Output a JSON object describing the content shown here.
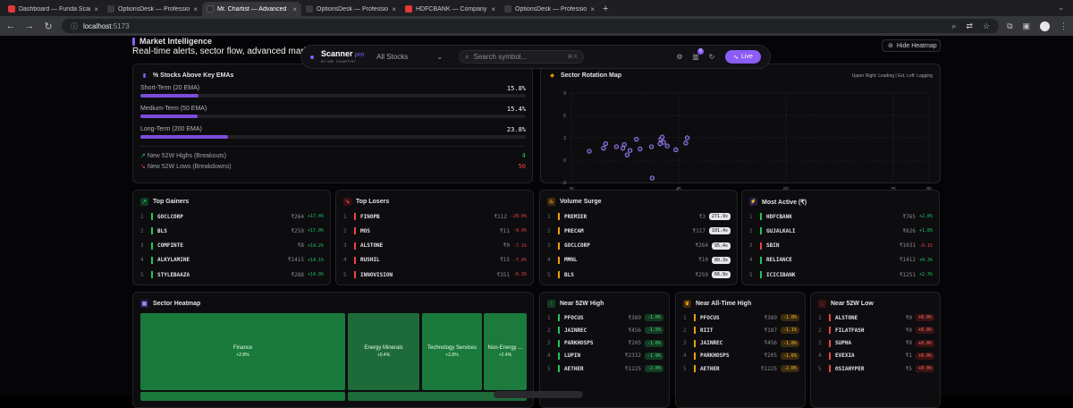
{
  "browser": {
    "tabs": [
      {
        "title": "Dashboard — Funda Scanner",
        "color": "#e53935",
        "active": false
      },
      {
        "title": "OptionsDesk — Professional N",
        "color": "#3a3a40",
        "active": false
      },
      {
        "title": "Mr. Chartist — Advanced Stock",
        "color": "#2b2b31",
        "active": true
      },
      {
        "title": "OptionsDesk — Professional N",
        "color": "#3a3a40",
        "active": false
      },
      {
        "title": "HDFCBANK — Company Detail",
        "color": "#e53935",
        "active": false
      },
      {
        "title": "OptionsDesk — Professional N",
        "color": "#3a3a40",
        "active": false
      }
    ],
    "new_tab": "+",
    "url_host": "localhost",
    "url_port": ":5173"
  },
  "header": {
    "section": "Market Intelligence",
    "subtitle": "Real-time alerts, sector flow, advanced market br",
    "hide_heatmap": "Hide Heatmap"
  },
  "scanner": {
    "name": "Scanner",
    "pro": "pro",
    "byline": "BY MR. CHARTIST",
    "select": "All Stocks",
    "search_placeholder": "Search symbol...",
    "shortcut": "⌘ K",
    "cart_count": "0",
    "live": "Live"
  },
  "ema": {
    "title": "% Stocks Above Key EMAs",
    "rows": [
      {
        "label": "Short-Term (20 EMA)",
        "value": "15.8%",
        "pct": 15.8
      },
      {
        "label": "Medium-Term (50 EMA)",
        "value": "15.4%",
        "pct": 15.4
      },
      {
        "label": "Long-Term (200 EMA)",
        "value": "23.8%",
        "pct": 23.8
      }
    ],
    "highs_label": "New 52W Highs (Breakouts)",
    "highs_value": "4",
    "lows_label": "New 52W Lows (Breakdowns)",
    "lows_value": "50"
  },
  "rotation": {
    "title": "Sector Rotation Map",
    "legend": "Upper Right: Leading | Ext. Left: Lagging"
  },
  "chart_data": {
    "type": "scatter",
    "title": "Sector Rotation Map",
    "xlim": [
      30,
      80
    ],
    "ylim": [
      -3,
      9
    ],
    "x_ticks": [
      "30",
      "45",
      "60",
      "75",
      "80"
    ],
    "y_ticks": [
      "9",
      "6",
      "3",
      "0",
      "-3"
    ],
    "grid": true,
    "points": [
      {
        "x": 32.5,
        "y": 1.2
      },
      {
        "x": 34.5,
        "y": 1.6
      },
      {
        "x": 34.8,
        "y": 2.2
      },
      {
        "x": 36.3,
        "y": 1.8
      },
      {
        "x": 37.2,
        "y": 1.6
      },
      {
        "x": 37.4,
        "y": 2.1
      },
      {
        "x": 37.8,
        "y": 0.7
      },
      {
        "x": 38.2,
        "y": 1.3
      },
      {
        "x": 39.1,
        "y": 2.8
      },
      {
        "x": 39.6,
        "y": 1.5
      },
      {
        "x": 41.2,
        "y": 1.8
      },
      {
        "x": 42.4,
        "y": 2.2
      },
      {
        "x": 42.5,
        "y": 2.8
      },
      {
        "x": 42.7,
        "y": 3.1
      },
      {
        "x": 42.9,
        "y": 2.4
      },
      {
        "x": 43.4,
        "y": 1.9
      },
      {
        "x": 44.6,
        "y": 1.4
      },
      {
        "x": 46.0,
        "y": 2.3
      },
      {
        "x": 46.2,
        "y": 3.0
      },
      {
        "x": 41.3,
        "y": -2.4
      }
    ]
  },
  "gainers": {
    "title": "Top Gainers",
    "items": [
      {
        "rank": "1",
        "sym": "GOCLCORP",
        "price": "₹264",
        "chg": "+17.4%"
      },
      {
        "rank": "2",
        "sym": "BLS",
        "price": "₹259",
        "chg": "+17.0%"
      },
      {
        "rank": "3",
        "sym": "COMFINTE",
        "price": "₹8",
        "chg": "+14.2%"
      },
      {
        "rank": "4",
        "sym": "ALKYLAMINE",
        "price": "₹1415",
        "chg": "+14.1%"
      },
      {
        "rank": "5",
        "sym": "STYLEBAAZA",
        "price": "₹288",
        "chg": "+14.0%"
      }
    ]
  },
  "losers": {
    "title": "Top Losers",
    "items": [
      {
        "rank": "1",
        "sym": "FINOPB",
        "price": "₹112",
        "chg": "-20.0%"
      },
      {
        "rank": "2",
        "sym": "MOS",
        "price": "₹11",
        "chg": "-9.9%"
      },
      {
        "rank": "3",
        "sym": "ALSTONE",
        "price": "₹0",
        "chg": "-7.1%"
      },
      {
        "rank": "4",
        "sym": "RUSHIL",
        "price": "₹15",
        "chg": "-7.0%"
      },
      {
        "rank": "5",
        "sym": "INNOVISION",
        "price": "₹351",
        "chg": "-6.3%"
      }
    ]
  },
  "surge": {
    "title": "Volume Surge",
    "items": [
      {
        "rank": "1",
        "sym": "PREMIER",
        "price": "₹3",
        "mult": "271.9x"
      },
      {
        "rank": "2",
        "sym": "PRECAM",
        "price": "₹117",
        "mult": "101.4x"
      },
      {
        "rank": "3",
        "sym": "GOCLCORP",
        "price": "₹264",
        "mult": "95.4x"
      },
      {
        "rank": "4",
        "sym": "MMNL",
        "price": "₹10",
        "mult": "80.3x"
      },
      {
        "rank": "5",
        "sym": "BLS",
        "price": "₹259",
        "mult": "66.9x"
      }
    ]
  },
  "active": {
    "title": "Most Active (₹)",
    "items": [
      {
        "rank": "1",
        "sym": "HDFCBANK",
        "price": "₹765",
        "chg": "+2.8%",
        "up": true
      },
      {
        "rank": "2",
        "sym": "GUJALKALI",
        "price": "₹626",
        "chg": "+1.8%",
        "up": true
      },
      {
        "rank": "3",
        "sym": "SBIN",
        "price": "₹1031",
        "chg": "-0.1%",
        "up": false
      },
      {
        "rank": "4",
        "sym": "RELIANCE",
        "price": "₹1412",
        "chg": "+0.3%",
        "up": true
      },
      {
        "rank": "5",
        "sym": "ICICIBANK",
        "price": "₹1251",
        "chg": "+2.3%",
        "up": true
      }
    ]
  },
  "heatmap": {
    "title": "Sector Heatmap",
    "tiles": [
      {
        "name": "Finance",
        "chg": "+2.8%"
      },
      {
        "name": "Energy Minerals",
        "chg": "+0.4%"
      },
      {
        "name": "Technology Services",
        "chg": "+2.8%"
      },
      {
        "name": "Non-Energy ...",
        "chg": "+2.4%"
      }
    ]
  },
  "near_high": {
    "title": "Near 52W High",
    "items": [
      {
        "rank": "1",
        "sym": "PFOCUS",
        "price": "₹389",
        "pct": "-1.0%"
      },
      {
        "rank": "2",
        "sym": "JAINREC",
        "price": "₹456",
        "pct": "-1.5%"
      },
      {
        "rank": "3",
        "sym": "PARKHOSPS",
        "price": "₹205",
        "pct": "-1.6%"
      },
      {
        "rank": "4",
        "sym": "LUPIN",
        "price": "₹2332",
        "pct": "-1.9%"
      },
      {
        "rank": "5",
        "sym": "AETHER",
        "price": "₹1225",
        "pct": "-2.0%"
      }
    ]
  },
  "near_ath": {
    "title": "Near All-Time High",
    "items": [
      {
        "rank": "1",
        "sym": "PFOCUS",
        "price": "₹389",
        "pct": "-1.0%"
      },
      {
        "rank": "2",
        "sym": "RIIT",
        "price": "₹187",
        "pct": "-1.1%"
      },
      {
        "rank": "3",
        "sym": "JAINREC",
        "price": "₹456",
        "pct": "-1.8%"
      },
      {
        "rank": "4",
        "sym": "PARKHOSPS",
        "price": "₹205",
        "pct": "-1.6%"
      },
      {
        "rank": "5",
        "sym": "AETHER",
        "price": "₹1225",
        "pct": "-2.0%"
      }
    ]
  },
  "near_low": {
    "title": "Near 52W Low",
    "items": [
      {
        "rank": "1",
        "sym": "ALSTONE",
        "price": "₹0",
        "pct": "+0.0%"
      },
      {
        "rank": "2",
        "sym": "FILATFASH",
        "price": "₹0",
        "pct": "+0.0%"
      },
      {
        "rank": "3",
        "sym": "SUPHA",
        "price": "₹0",
        "pct": "+0.0%"
      },
      {
        "rank": "4",
        "sym": "EVEXIA",
        "price": "₹1",
        "pct": "+0.0%"
      },
      {
        "rank": "5",
        "sym": "OSIAHYPER",
        "price": "₹5",
        "pct": "+0.0%"
      }
    ]
  },
  "colors": {
    "accent": "#8b5cf6",
    "up": "#22c55e",
    "down": "#ef4444",
    "amber": "#f59e0b"
  }
}
